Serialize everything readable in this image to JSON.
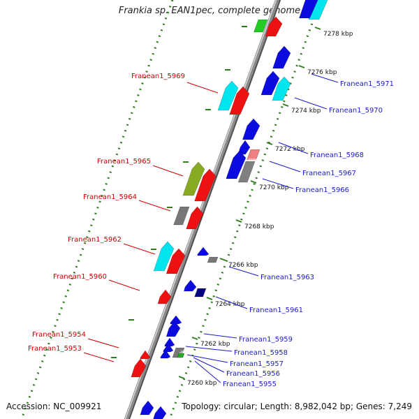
{
  "title": "Frankia sp. EAN1pec, complete genome",
  "footer": {
    "accession": "Accession: NC_009921",
    "topology": "Topology: circular; Length: 8,982,042 bp; Genes: 7,249"
  },
  "colors": {
    "left_label": "#cc0000",
    "right_label": "#1a1acc",
    "tick": "#2e7d1e",
    "backbone": "#8a8a8a"
  },
  "kbp_ticks": [
    "7278 kbp",
    "7276 kbp",
    "7274 kbp",
    "7272 kbp",
    "7270 kbp",
    "7268 kbp",
    "7266 kbp",
    "7264 kbp",
    "7262 kbp",
    "7260 kbp"
  ],
  "left_labels": [
    "Franean1_5969",
    "Franean1_5965",
    "Franean1_5964",
    "Franean1_5962",
    "Franean1_5960",
    "Franean1_5954",
    "Franean1_5953"
  ],
  "right_labels": [
    "Franean1_5971",
    "Franean1_5970",
    "Franean1_5968",
    "Franean1_5967",
    "Franean1_5966",
    "Franean1_5963",
    "Franean1_5961",
    "Franean1_5959",
    "Franean1_5958",
    "Franean1_5957",
    "Franean1_5956",
    "Franean1_5955"
  ]
}
